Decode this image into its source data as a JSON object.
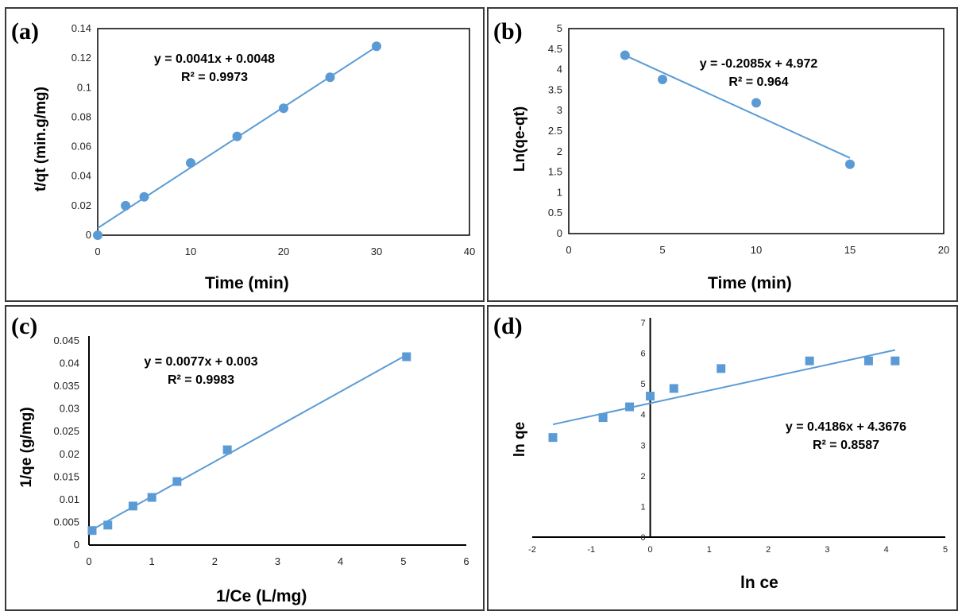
{
  "colors": {
    "series": "#5b9bd5",
    "axis": "#000000",
    "text": "#000000"
  },
  "chart_data": [
    {
      "type": "scatter",
      "panel_label": "(a)",
      "xlabel": "Time (min)",
      "ylabel": "t/qt (min.g/mg)",
      "xlim": [
        0,
        40
      ],
      "ylim": [
        0,
        0.14
      ],
      "xticks": [
        0,
        10,
        20,
        30,
        40
      ],
      "xtick_labels": [
        "0",
        "10",
        "20",
        "30",
        "40"
      ],
      "yticks": [
        0,
        0.02,
        0.04,
        0.06,
        0.08,
        0.1,
        0.12,
        0.14
      ],
      "ytick_labels": [
        "0",
        "0.02",
        "0.04",
        "0.06",
        "0.08",
        "0.1",
        "0.12",
        "0.14"
      ],
      "marker": "circle",
      "grid": false,
      "x": [
        0,
        3,
        5,
        10,
        15,
        20,
        25,
        30
      ],
      "y": [
        0,
        0.02,
        0.026,
        0.049,
        0.067,
        0.086,
        0.107,
        0.128
      ],
      "trendline": {
        "x": [
          0,
          30
        ],
        "y": [
          0.0048,
          0.1278
        ]
      },
      "equation": "y = 0.0041x + 0.0048",
      "r2": "R² = 0.9973"
    },
    {
      "type": "scatter",
      "panel_label": "(b)",
      "xlabel": "Time (min)",
      "ylabel": "Ln(qe-qt)",
      "xlim": [
        0,
        20
      ],
      "ylim": [
        0,
        5
      ],
      "xticks": [
        0,
        5,
        10,
        15,
        20
      ],
      "xtick_labels": [
        "0",
        "5",
        "10",
        "15",
        "20"
      ],
      "yticks": [
        0,
        0.5,
        1,
        1.5,
        2,
        2.5,
        3,
        3.5,
        4,
        4.5,
        5
      ],
      "ytick_labels": [
        "0",
        "0.5",
        "1",
        "1.5",
        "2",
        "2.5",
        "3",
        "3.5",
        "4",
        "4.5",
        "5"
      ],
      "marker": "circle",
      "grid": false,
      "x": [
        3,
        5,
        10,
        15
      ],
      "y": [
        4.35,
        3.76,
        3.19,
        1.69
      ],
      "trendline": {
        "x": [
          3,
          15
        ],
        "y": [
          4.3465,
          1.8445
        ]
      },
      "equation": "y = -0.2085x + 4.972",
      "r2": "R² = 0.964"
    },
    {
      "type": "scatter",
      "panel_label": "(c)",
      "xlabel": "1/Ce (L/mg)",
      "ylabel": "1/qe (g/mg)",
      "xlim": [
        0,
        6
      ],
      "ylim": [
        0,
        0.045
      ],
      "xticks": [
        0,
        1,
        2,
        3,
        4,
        5,
        6
      ],
      "xtick_labels": [
        "0",
        "1",
        "2",
        "3",
        "4",
        "5",
        "6"
      ],
      "yticks": [
        0,
        0.005,
        0.01,
        0.015,
        0.02,
        0.025,
        0.03,
        0.035,
        0.04,
        0.045
      ],
      "ytick_labels": [
        "0",
        "0.005",
        "0.01",
        "0.015",
        "0.02",
        "0.025",
        "0.03",
        "0.035",
        "0.04",
        "0.045"
      ],
      "marker": "square",
      "grid": false,
      "x": [
        0.05,
        0.3,
        0.7,
        1.0,
        1.4,
        2.2,
        5.05
      ],
      "y": [
        0.0032,
        0.0044,
        0.0086,
        0.0105,
        0.014,
        0.021,
        0.0415
      ],
      "trendline": {
        "x": [
          0,
          5.05
        ],
        "y": [
          0.003,
          0.0419
        ]
      },
      "equation": "y = 0.0077x + 0.003",
      "r2": "R² = 0.9983"
    },
    {
      "type": "scatter",
      "panel_label": "(d)",
      "xlabel": "ln ce",
      "ylabel": "ln qe",
      "xlim": [
        -2,
        5
      ],
      "ylim": [
        0,
        7
      ],
      "xticks": [
        -2,
        -1,
        0,
        1,
        2,
        3,
        4,
        5
      ],
      "xtick_labels": [
        "-2",
        "-1",
        "0",
        "1",
        "2",
        "3",
        "4",
        "5"
      ],
      "yticks": [
        0,
        1,
        2,
        3,
        4,
        5,
        6,
        7
      ],
      "ytick_labels": [
        "0",
        "1",
        "2",
        "3",
        "4",
        "5",
        "6",
        "7"
      ],
      "marker": "square",
      "grid": false,
      "x": [
        -1.65,
        -0.8,
        -0.35,
        0,
        0.4,
        1.2,
        2.7,
        3.7,
        4.15
      ],
      "y": [
        3.25,
        3.9,
        4.25,
        4.6,
        4.85,
        5.5,
        5.75,
        5.75,
        5.75
      ],
      "trendline": {
        "x": [
          -1.65,
          4.15
        ],
        "y": [
          3.677,
          6.105
        ]
      },
      "equation": "y = 0.4186x + 4.3676",
      "r2": "R² = 0.8587"
    }
  ]
}
